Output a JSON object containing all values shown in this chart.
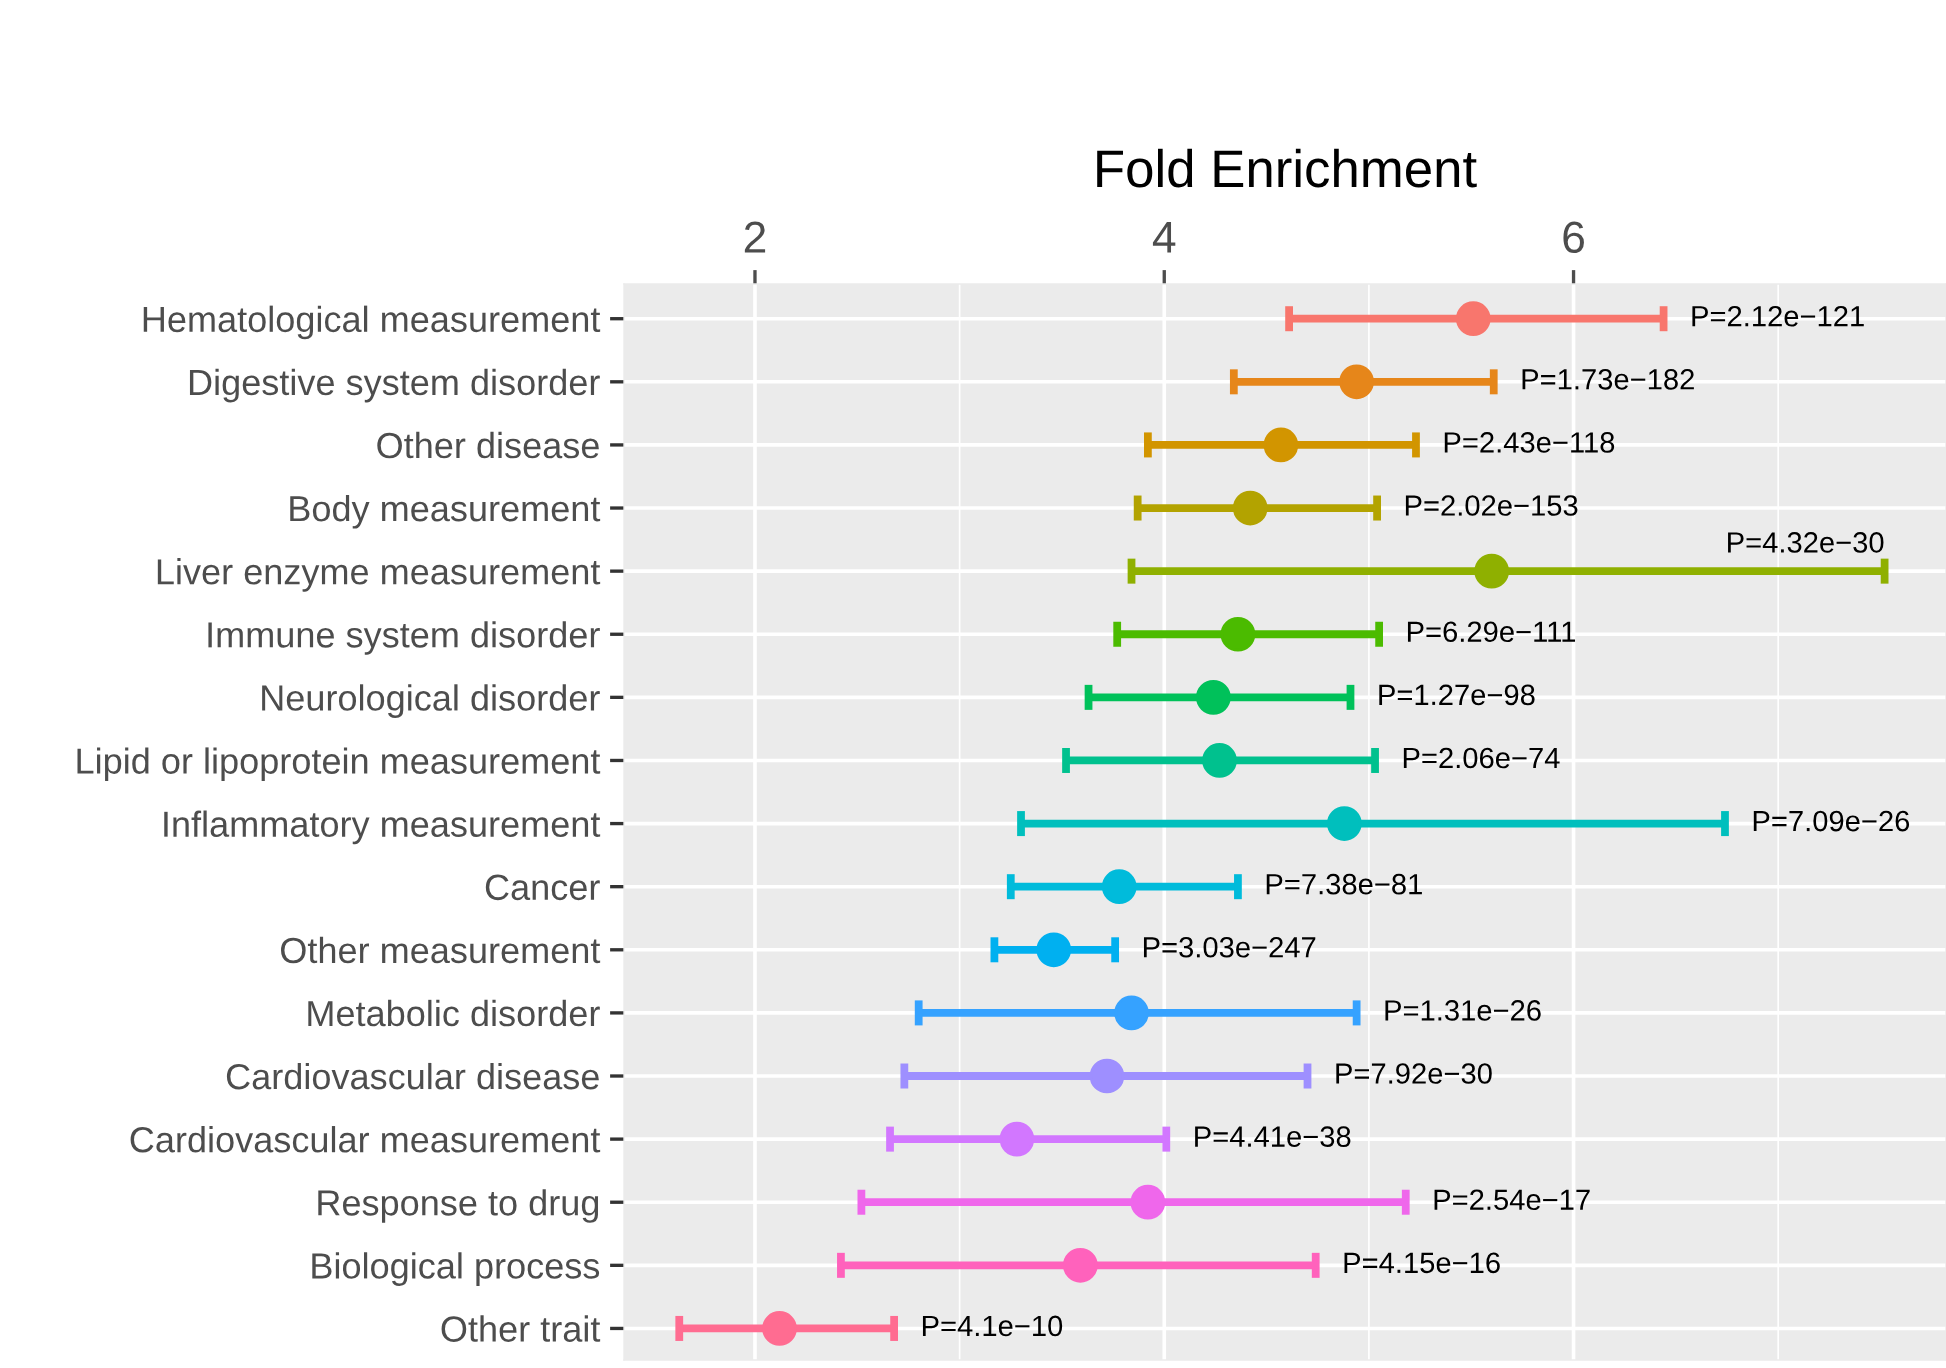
{
  "chart_data": {
    "type": "scatter",
    "xlabel": "Fold Enrichment",
    "categories": [
      "Hematological measurement",
      "Digestive system disorder",
      "Other disease",
      "Body measurement",
      "Liver enzyme measurement",
      "Immune system disorder",
      "Neurological disorder",
      "Lipid or lipoprotein measurement",
      "Inflammatory measurement",
      "Cancer",
      "Other measurement",
      "Metabolic disorder",
      "Cardiovascular disease",
      "Cardiovascular measurement",
      "Response to drug",
      "Biological process",
      "Other trait"
    ],
    "orientation": "horizontal",
    "values": [
      5.51,
      4.94,
      4.57,
      4.42,
      5.6,
      4.36,
      4.24,
      4.27,
      4.88,
      3.78,
      3.46,
      3.84,
      3.72,
      3.28,
      3.92,
      3.59,
      2.12
    ],
    "errors": [
      [
        4.61,
        6.44
      ],
      [
        4.34,
        5.61
      ],
      [
        3.92,
        5.23
      ],
      [
        3.87,
        5.04
      ],
      [
        3.84,
        7.52
      ],
      [
        3.77,
        5.05
      ],
      [
        3.63,
        4.91
      ],
      [
        3.52,
        5.03
      ],
      [
        3.3,
        6.74
      ],
      [
        3.25,
        4.36
      ],
      [
        3.17,
        3.76
      ],
      [
        2.8,
        4.94
      ],
      [
        2.73,
        4.7
      ],
      [
        2.66,
        4.01
      ],
      [
        2.52,
        5.18
      ],
      [
        2.42,
        4.74
      ],
      [
        1.63,
        2.68
      ]
    ],
    "annotations": [
      {
        "text": "P=2.12e−121",
        "x": 6.44,
        "y": "Hematological measurement"
      },
      {
        "text": "P=1.73e−182",
        "x": 5.61,
        "y": "Digestive system disorder"
      },
      {
        "text": "P=2.43e−118",
        "x": 5.23,
        "y": "Other disease"
      },
      {
        "text": "P=2.02e−153",
        "x": 5.04,
        "y": "Body measurement"
      },
      {
        "text": "P=4.32e−30",
        "x": 7.52,
        "y": "Liver enzyme measurement"
      },
      {
        "text": "P=6.29e−111",
        "x": 5.05,
        "y": "Immune system disorder"
      },
      {
        "text": "P=1.27e−98",
        "x": 4.91,
        "y": "Neurological disorder"
      },
      {
        "text": "P=2.06e−74",
        "x": 5.03,
        "y": "Lipid or lipoprotein measurement"
      },
      {
        "text": "P=7.09e−26",
        "x": 6.74,
        "y": "Inflammatory measurement"
      },
      {
        "text": "P=7.38e−81",
        "x": 4.36,
        "y": "Cancer"
      },
      {
        "text": "P=3.03e−247",
        "x": 3.76,
        "y": "Other measurement"
      },
      {
        "text": "P=1.31e−26",
        "x": 4.94,
        "y": "Metabolic disorder"
      },
      {
        "text": "P=7.92e−30",
        "x": 4.7,
        "y": "Cardiovascular disease"
      },
      {
        "text": "P=4.41e−38",
        "x": 4.01,
        "y": "Cardiovascular measurement"
      },
      {
        "text": "P=2.54e−17",
        "x": 5.18,
        "y": "Response to drug"
      },
      {
        "text": "P=4.15e−16",
        "x": 4.74,
        "y": "Biological process"
      },
      {
        "text": "P=4.1e−10",
        "x": 2.68,
        "y": "Other trait"
      }
    ],
    "colors": [
      "#f8766d",
      "#e6861a",
      "#d29500",
      "#b3a300",
      "#8fb000",
      "#4bbb00",
      "#00c15a",
      "#00c18e",
      "#00bfbd",
      "#00bbdb",
      "#00b0f0",
      "#35a2ff",
      "#9e8fff",
      "#d277ff",
      "#ef67eb",
      "#ff62bc",
      "#ff6c91"
    ],
    "marker": "circle",
    "xlim": [
      1.36,
      7.82
    ],
    "xticks": [
      2,
      4,
      6
    ],
    "grid": true
  }
}
